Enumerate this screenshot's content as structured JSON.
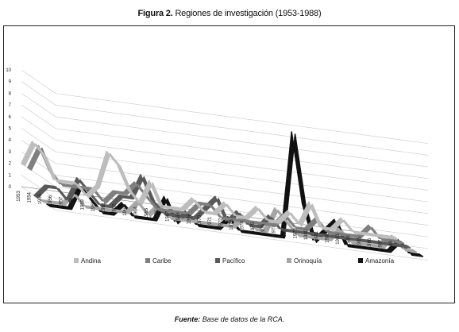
{
  "figure": {
    "title_bold": "Figura 2.",
    "title_text": "Regiones de investigación (1953-1988)",
    "source_bold": "Fuente:",
    "source_text": "Base de datos de la RCA."
  },
  "chart_data": {
    "type": "line",
    "subtype": "3d-ribbon",
    "title": "Figura 2. Regiones de investigación (1953-1988)",
    "xlabel": "",
    "ylabel": "",
    "ylim": [
      0,
      10
    ],
    "yticks": [
      0,
      1,
      2,
      3,
      4,
      5,
      6,
      7,
      8,
      9,
      10
    ],
    "grid": true,
    "legend_position": "bottom",
    "categories": [
      "1953",
      "1954",
      "1955",
      "1956",
      "1957",
      "1958",
      "1959",
      "1960",
      "1961",
      "1962",
      "1963",
      "1964",
      "1965",
      "1966",
      "1967",
      "1968",
      "1969",
      "1970",
      "1971",
      "1972",
      "1973",
      "1974",
      "1975",
      "1976",
      "1977",
      "1978",
      "1979",
      "1980",
      "1981",
      "1982",
      "1983",
      "1984",
      "1985",
      "1986",
      "1987",
      "1988"
    ],
    "series": [
      {
        "name": "Andina",
        "color": "#bdbdbd",
        "values": [
          2,
          4,
          3,
          1,
          1,
          1,
          0,
          1,
          4,
          3,
          1,
          0,
          2,
          0,
          0,
          0,
          1,
          0,
          0,
          1,
          0,
          0,
          1,
          0,
          0,
          1,
          0,
          2,
          0,
          0,
          1,
          0,
          0,
          0,
          0,
          0
        ]
      },
      {
        "name": "Caribe",
        "color": "#7f7f7f",
        "values": [
          2,
          4,
          2,
          1,
          1,
          1,
          1,
          0,
          1,
          1,
          2,
          1,
          0,
          0,
          0,
          0,
          1,
          1,
          0,
          0,
          0,
          0,
          0,
          0,
          1,
          0,
          0,
          1,
          0,
          0,
          0,
          0,
          1,
          0,
          0,
          0
        ]
      },
      {
        "name": "Pacífico",
        "color": "#595959",
        "values": [
          0,
          1,
          1,
          0,
          2,
          1,
          0,
          0,
          1,
          1,
          3,
          1,
          0,
          0,
          0,
          0,
          1,
          2,
          0,
          1,
          0,
          0,
          1,
          0,
          0,
          0,
          0,
          0,
          0,
          0,
          0,
          0,
          0,
          0,
          0,
          0
        ]
      },
      {
        "name": "Orinoquía",
        "color": "#a6a6a6",
        "values": [
          0,
          0,
          0,
          1,
          0,
          0,
          0,
          0,
          0,
          1,
          0,
          1,
          0,
          0,
          0,
          0,
          0,
          0,
          0,
          1,
          0,
          0,
          2,
          1,
          0,
          0,
          0,
          0,
          1,
          0,
          0,
          0,
          0,
          1,
          0,
          0
        ]
      },
      {
        "name": "Amazonía",
        "color": "#111111",
        "values": [
          0,
          0,
          0,
          2,
          1,
          0,
          0,
          1,
          0,
          0,
          0,
          2,
          0,
          1,
          0,
          0,
          0,
          1,
          0,
          0,
          0,
          0,
          0,
          9,
          3,
          0,
          1,
          2,
          0,
          0,
          0,
          0,
          0,
          1,
          0,
          0
        ]
      }
    ]
  }
}
